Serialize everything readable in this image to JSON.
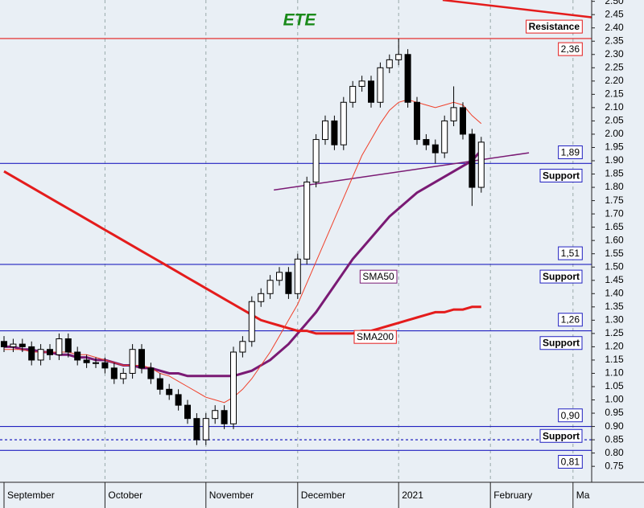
{
  "chart_data": {
    "type": "candlestick",
    "title": "ETE",
    "categories": [
      "September",
      null,
      null,
      null,
      null,
      null,
      null,
      null,
      null,
      null,
      null,
      "October",
      null,
      null,
      null,
      null,
      null,
      null,
      null,
      null,
      null,
      null,
      "November",
      null,
      null,
      null,
      null,
      null,
      null,
      null,
      null,
      null,
      "December",
      null,
      null,
      null,
      null,
      null,
      null,
      null,
      null,
      null,
      null,
      "2021",
      null,
      null,
      null,
      null,
      null,
      null,
      null,
      null,
      null,
      "February",
      null,
      null,
      null,
      null,
      null,
      null,
      null,
      null,
      "Ma"
    ],
    "open": [
      1.22,
      1.2,
      1.21,
      1.2,
      1.15,
      1.19,
      1.17,
      1.23,
      1.18,
      1.15,
      1.14,
      1.14,
      1.12,
      1.08,
      1.1,
      1.19,
      1.12,
      1.08,
      1.04,
      1.02,
      0.98,
      0.93,
      0.85,
      0.93,
      0.96,
      0.91,
      1.18,
      1.22,
      1.37,
      1.4,
      1.45,
      1.48,
      1.4,
      1.53,
      1.82,
      1.98,
      2.05,
      1.96,
      2.12,
      2.18,
      2.2,
      2.12,
      2.25,
      2.28,
      2.3,
      2.12,
      1.98,
      1.96,
      1.93,
      2.05,
      2.1,
      2.0,
      1.8,
      null,
      null,
      null,
      null,
      null,
      null,
      null,
      null,
      null,
      null
    ],
    "high": [
      1.24,
      1.23,
      1.23,
      1.22,
      1.21,
      1.21,
      1.25,
      1.25,
      1.2,
      1.17,
      1.16,
      1.16,
      1.14,
      1.12,
      1.21,
      1.21,
      1.14,
      1.1,
      1.06,
      1.04,
      1.0,
      0.95,
      0.95,
      0.98,
      0.98,
      1.2,
      1.24,
      1.39,
      1.42,
      1.47,
      1.5,
      1.5,
      1.55,
      1.84,
      2.0,
      2.07,
      2.07,
      2.14,
      2.2,
      2.22,
      2.22,
      2.27,
      2.3,
      2.36,
      2.32,
      2.14,
      2.0,
      1.98,
      2.07,
      2.18,
      2.12,
      2.02,
      1.99,
      null,
      null,
      null,
      null,
      null,
      null,
      null,
      null,
      null,
      null
    ],
    "low": [
      1.18,
      1.18,
      1.18,
      1.13,
      1.13,
      1.15,
      1.15,
      1.16,
      1.13,
      1.12,
      1.12,
      1.1,
      1.06,
      1.06,
      1.08,
      1.1,
      1.06,
      1.02,
      1.0,
      0.96,
      0.91,
      0.83,
      0.83,
      0.91,
      0.89,
      0.89,
      1.16,
      1.2,
      1.35,
      1.38,
      1.43,
      1.38,
      1.38,
      1.51,
      1.8,
      1.96,
      1.94,
      1.94,
      2.1,
      2.16,
      2.1,
      2.1,
      2.23,
      2.26,
      2.1,
      1.96,
      1.94,
      1.89,
      1.91,
      2.03,
      1.98,
      1.73,
      1.78,
      null,
      null,
      null,
      null,
      null,
      null,
      null,
      null,
      null,
      null
    ],
    "close": [
      1.2,
      1.21,
      1.2,
      1.15,
      1.19,
      1.17,
      1.23,
      1.18,
      1.15,
      1.14,
      1.14,
      1.12,
      1.08,
      1.1,
      1.19,
      1.12,
      1.08,
      1.04,
      1.02,
      0.98,
      0.93,
      0.85,
      0.93,
      0.96,
      0.91,
      1.18,
      1.22,
      1.37,
      1.4,
      1.45,
      1.48,
      1.4,
      1.53,
      1.82,
      1.98,
      2.05,
      1.96,
      2.12,
      2.18,
      2.2,
      2.12,
      2.25,
      2.28,
      2.3,
      2.12,
      1.98,
      1.96,
      1.93,
      2.05,
      2.1,
      2.0,
      1.8,
      1.97,
      null,
      null,
      null,
      null,
      null,
      null,
      null,
      null,
      null,
      null
    ],
    "series": [
      {
        "name": "SMA50",
        "color": "#7a1a74",
        "values": [
          1.2,
          1.2,
          1.19,
          1.19,
          1.18,
          1.18,
          1.17,
          1.17,
          1.16,
          1.16,
          1.15,
          1.15,
          1.14,
          1.13,
          1.13,
          1.12,
          1.12,
          1.11,
          1.1,
          1.1,
          1.09,
          1.09,
          1.09,
          1.09,
          1.09,
          1.09,
          1.1,
          1.11,
          1.13,
          1.15,
          1.18,
          1.21,
          1.25,
          1.29,
          1.33,
          1.38,
          1.43,
          1.48,
          1.53,
          1.57,
          1.61,
          1.65,
          1.69,
          1.72,
          1.75,
          1.78,
          1.8,
          1.82,
          1.84,
          1.86,
          1.88,
          1.9,
          1.94,
          null,
          null,
          null,
          null,
          null,
          null,
          null,
          null,
          null,
          null
        ]
      },
      {
        "name": "SMA200",
        "color": "#e41c1c",
        "values": [
          1.86,
          1.84,
          1.82,
          1.8,
          1.78,
          1.76,
          1.74,
          1.72,
          1.7,
          1.68,
          1.66,
          1.64,
          1.62,
          1.6,
          1.58,
          1.56,
          1.54,
          1.52,
          1.5,
          1.48,
          1.46,
          1.44,
          1.42,
          1.4,
          1.38,
          1.36,
          1.34,
          1.32,
          1.3,
          1.29,
          1.28,
          1.27,
          1.26,
          1.26,
          1.25,
          1.25,
          1.25,
          1.25,
          1.25,
          1.26,
          1.26,
          1.27,
          1.28,
          1.29,
          1.3,
          1.31,
          1.32,
          1.33,
          1.33,
          1.34,
          1.34,
          1.35,
          1.35,
          null,
          null,
          null,
          null,
          null,
          null,
          null,
          null,
          null,
          null
        ]
      },
      {
        "color": "#f0402a",
        "values": [
          1.19,
          1.19,
          1.19,
          1.18,
          1.18,
          1.18,
          1.18,
          1.18,
          1.17,
          1.17,
          1.16,
          1.15,
          1.14,
          1.13,
          1.13,
          1.13,
          1.12,
          1.1,
          1.09,
          1.07,
          1.05,
          1.03,
          1.01,
          1.0,
          0.99,
          1.01,
          1.04,
          1.08,
          1.13,
          1.18,
          1.24,
          1.3,
          1.36,
          1.44,
          1.52,
          1.6,
          1.68,
          1.76,
          1.84,
          1.92,
          1.98,
          2.04,
          2.09,
          2.12,
          2.13,
          2.12,
          2.11,
          2.1,
          2.11,
          2.12,
          2.11,
          2.07,
          2.04,
          null,
          null,
          null,
          null,
          null,
          null,
          null,
          null,
          null,
          null
        ]
      }
    ],
    "trendlines": [
      {
        "color": "#7a1a74",
        "points": [
          [
            29.4,
            1.79
          ],
          [
            57.2,
            1.93
          ]
        ]
      },
      {
        "color": "#e41c1c",
        "points": [
          [
            47.8,
            2.505
          ],
          [
            64,
            2.44
          ]
        ]
      }
    ],
    "levels": [
      {
        "value": 2.36,
        "color": "#e41c1c",
        "value_label": "2,36",
        "tag": "Resistance"
      },
      {
        "value": 1.89,
        "color": "#2020c0",
        "value_label": "1,89",
        "tag": "Support"
      },
      {
        "value": 1.51,
        "color": "#2020c0",
        "value_label": "1,51",
        "tag": "Support"
      },
      {
        "value": 1.26,
        "color": "#2020c0",
        "value_label": "1,26",
        "tag": "Support"
      },
      {
        "value": 0.9,
        "color": "#2020c0",
        "value_label": "0,90"
      },
      {
        "value": 0.85,
        "color": "#2020c0",
        "dashed": true,
        "tag": "Support"
      },
      {
        "value": 0.81,
        "color": "#2020c0",
        "value_label": "0,81"
      }
    ],
    "ylim": [
      0.69,
      2.505
    ],
    "yticks": [
      {
        "value": 0.75,
        "label": "0.75"
      },
      {
        "value": 0.8,
        "label": "0.80"
      },
      0.85,
      {
        "value": 0.9,
        "label": "0.90"
      },
      0.95,
      {
        "value": 1,
        "label": "1.00"
      },
      1.05,
      {
        "value": 1.1,
        "label": "1.10"
      },
      1.15,
      {
        "value": 1.2,
        "label": "1.20"
      },
      1.25,
      {
        "value": 1.3,
        "label": "1.30"
      },
      1.35,
      {
        "value": 1.4,
        "label": "1.40"
      },
      1.45,
      {
        "value": 1.5,
        "label": "1.50"
      },
      1.55,
      {
        "value": 1.6,
        "label": "1.60"
      },
      1.65,
      {
        "value": 1.7,
        "label": "1.70"
      },
      1.75,
      {
        "value": 1.8,
        "label": "1.80"
      },
      1.85,
      {
        "value": 1.9,
        "label": "1.90"
      },
      1.95,
      {
        "value": 2,
        "label": "2.00"
      },
      2.05,
      {
        "value": 2.1,
        "label": "2.10"
      },
      2.15,
      {
        "value": 2.2,
        "label": "2.20"
      },
      2.25,
      {
        "value": 2.3,
        "label": "2.30"
      },
      2.35,
      {
        "value": 2.4,
        "label": "2.40"
      },
      2.45,
      {
        "value": 2.5,
        "label": "2.50"
      }
    ],
    "grid": true
  }
}
